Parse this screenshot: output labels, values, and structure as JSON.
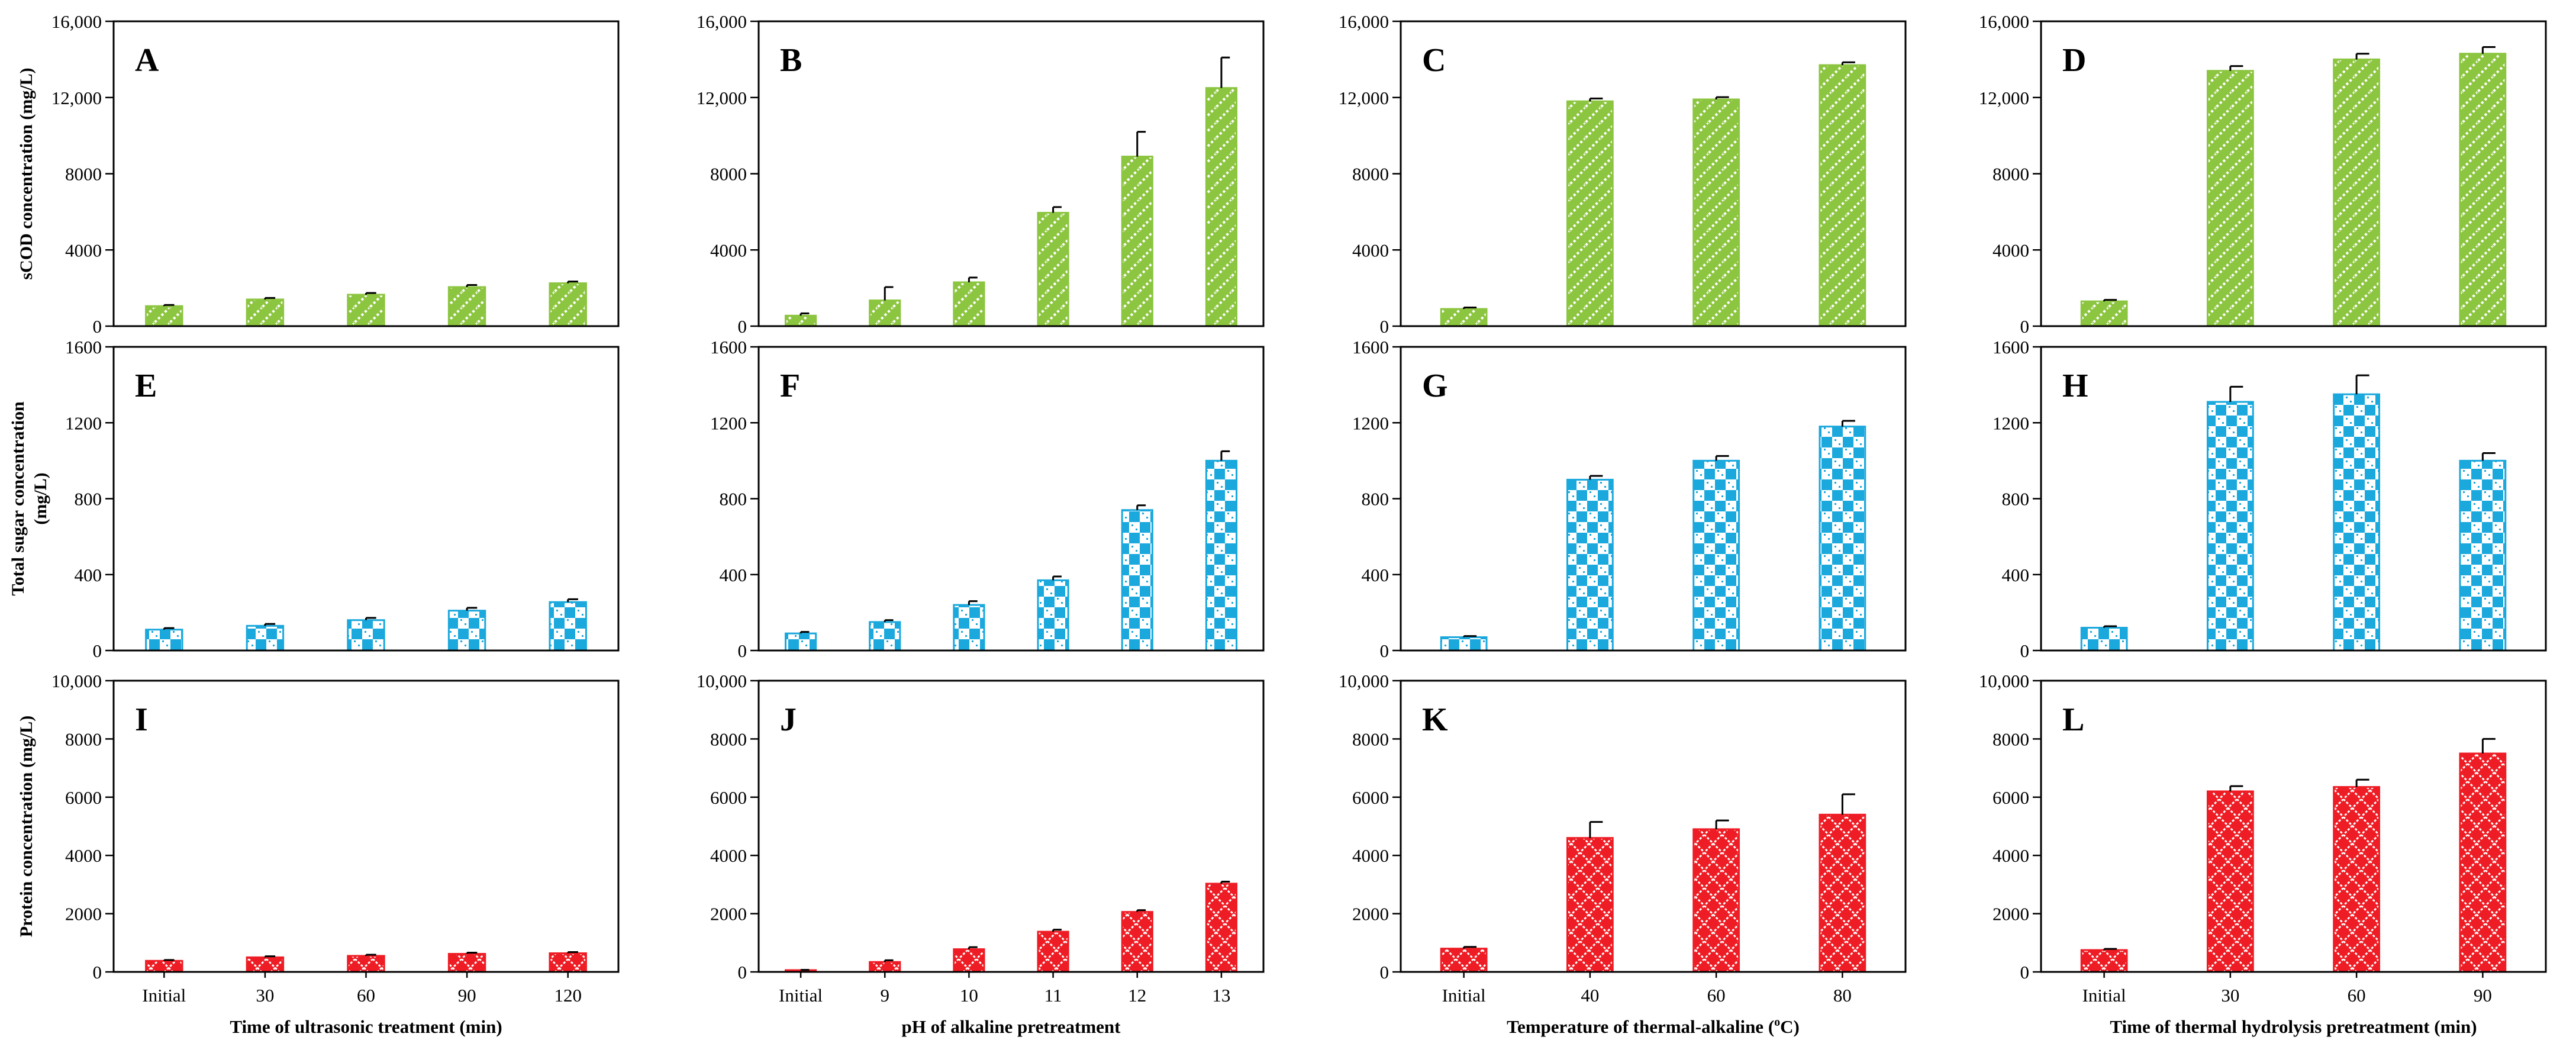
{
  "palette": {
    "green": "#8cc540",
    "blue": "#1aa8dd",
    "red": "#ee1c24"
  },
  "chart_data": [
    {
      "panel": "A",
      "type": "bar",
      "row": 0,
      "col": 0,
      "fill": "green",
      "pattern": "diag",
      "categories": [
        "Initial",
        "30",
        "60",
        "90",
        "120"
      ],
      "values": [
        1050,
        1400,
        1650,
        2050,
        2250
      ],
      "errors": [
        60,
        80,
        90,
        110,
        90
      ],
      "ylim": [
        0,
        16000
      ],
      "yticks": [
        "0",
        "4000",
        "8000",
        "12,000",
        "16,000"
      ],
      "ylabel": "sCOD concentration (mg/L)",
      "xlabel": ""
    },
    {
      "panel": "B",
      "type": "bar",
      "row": 0,
      "col": 1,
      "fill": "green",
      "pattern": "diag",
      "categories": [
        "Initial",
        "9",
        "10",
        "11",
        "12",
        "13"
      ],
      "values": [
        550,
        1350,
        2300,
        5950,
        8900,
        12500
      ],
      "errors": [
        120,
        700,
        250,
        300,
        1300,
        1600
      ],
      "ylim": [
        0,
        16000
      ],
      "yticks": [
        "0",
        "4000",
        "8000",
        "12,000",
        "16,000"
      ],
      "ylabel": "",
      "xlabel": ""
    },
    {
      "panel": "C",
      "type": "bar",
      "row": 0,
      "col": 2,
      "fill": "green",
      "pattern": "diag",
      "categories": [
        "Initial",
        "40",
        "60",
        "80"
      ],
      "values": [
        900,
        11800,
        11900,
        13700
      ],
      "errors": [
        80,
        150,
        120,
        150
      ],
      "ylim": [
        0,
        16000
      ],
      "yticks": [
        "0",
        "4000",
        "8000",
        "12,000",
        "16,000"
      ],
      "ylabel": "",
      "xlabel": ""
    },
    {
      "panel": "D",
      "type": "bar",
      "row": 0,
      "col": 3,
      "fill": "green",
      "pattern": "diag",
      "categories": [
        "Initial",
        "30",
        "60",
        "90"
      ],
      "values": [
        1300,
        13400,
        14000,
        14300
      ],
      "errors": [
        80,
        250,
        300,
        350
      ],
      "ylim": [
        0,
        16000
      ],
      "yticks": [
        "0",
        "4000",
        "8000",
        "12,000",
        "16,000"
      ],
      "ylabel": "",
      "xlabel": ""
    },
    {
      "panel": "E",
      "type": "bar",
      "row": 1,
      "col": 0,
      "fill": "blue",
      "pattern": "check",
      "categories": [
        "Initial",
        "30",
        "60",
        "90",
        "120"
      ],
      "values": [
        110,
        130,
        160,
        210,
        255
      ],
      "errors": [
        8,
        10,
        12,
        15,
        15
      ],
      "ylim": [
        0,
        1600
      ],
      "yticks": [
        "0",
        "400",
        "800",
        "1200",
        "1600"
      ],
      "ylabel": "Total sugar concentration (mg/L)",
      "xlabel": ""
    },
    {
      "panel": "F",
      "type": "bar",
      "row": 1,
      "col": 1,
      "fill": "blue",
      "pattern": "check",
      "categories": [
        "Initial",
        "9",
        "10",
        "11",
        "12",
        "13"
      ],
      "values": [
        90,
        150,
        240,
        370,
        740,
        1000
      ],
      "errors": [
        8,
        10,
        20,
        20,
        25,
        50
      ],
      "ylim": [
        0,
        1600
      ],
      "yticks": [
        "0",
        "400",
        "800",
        "1200",
        "1600"
      ],
      "ylabel": "",
      "xlabel": ""
    },
    {
      "panel": "G",
      "type": "bar",
      "row": 1,
      "col": 2,
      "fill": "blue",
      "pattern": "check",
      "categories": [
        "Initial",
        "40",
        "60",
        "80"
      ],
      "values": [
        70,
        900,
        1000,
        1180
      ],
      "errors": [
        6,
        20,
        25,
        30
      ],
      "ylim": [
        0,
        1600
      ],
      "yticks": [
        "0",
        "400",
        "800",
        "1200",
        "1600"
      ],
      "ylabel": "",
      "xlabel": ""
    },
    {
      "panel": "H",
      "type": "bar",
      "row": 1,
      "col": 3,
      "fill": "blue",
      "pattern": "check",
      "categories": [
        "Initial",
        "30",
        "60",
        "90"
      ],
      "values": [
        120,
        1310,
        1350,
        1000
      ],
      "errors": [
        8,
        80,
        100,
        40
      ],
      "ylim": [
        0,
        1600
      ],
      "yticks": [
        "0",
        "400",
        "800",
        "1200",
        "1600"
      ],
      "ylabel": "",
      "xlabel": ""
    },
    {
      "panel": "I",
      "type": "bar",
      "row": 2,
      "col": 0,
      "fill": "red",
      "pattern": "lattice",
      "categories": [
        "Initial",
        "30",
        "60",
        "90",
        "120"
      ],
      "values": [
        380,
        500,
        550,
        620,
        640
      ],
      "errors": [
        30,
        35,
        40,
        40,
        40
      ],
      "ylim": [
        0,
        10000
      ],
      "yticks": [
        "0",
        "2000",
        "4000",
        "6000",
        "8000",
        "10,000"
      ],
      "ylabel": "Protein concentration (mg/L)",
      "xlabel": "Time of ultrasonic treatment (min)"
    },
    {
      "panel": "J",
      "type": "bar",
      "row": 2,
      "col": 1,
      "fill": "red",
      "pattern": "lattice",
      "categories": [
        "Initial",
        "9",
        "10",
        "11",
        "12",
        "13"
      ],
      "values": [
        60,
        340,
        780,
        1380,
        2060,
        3030
      ],
      "errors": [
        10,
        60,
        70,
        70,
        60,
        70
      ],
      "ylim": [
        0,
        10000
      ],
      "yticks": [
        "0",
        "2000",
        "4000",
        "6000",
        "8000",
        "10,000"
      ],
      "ylabel": "",
      "xlabel": "pH of alkaline pretreatment"
    },
    {
      "panel": "K",
      "type": "bar",
      "row": 2,
      "col": 2,
      "fill": "red",
      "pattern": "lattice",
      "categories": [
        "Initial",
        "40",
        "60",
        "80"
      ],
      "values": [
        800,
        4600,
        4900,
        5400
      ],
      "errors": [
        60,
        550,
        300,
        700
      ],
      "ylim": [
        0,
        10000
      ],
      "yticks": [
        "0",
        "2000",
        "4000",
        "6000",
        "8000",
        "10,000"
      ],
      "ylabel": "",
      "xlabel": "Temperature of  thermal-alkaline (oC)"
    },
    {
      "panel": "L",
      "type": "bar",
      "row": 2,
      "col": 3,
      "fill": "red",
      "pattern": "lattice",
      "categories": [
        "Initial",
        "30",
        "60",
        "90"
      ],
      "values": [
        750,
        6200,
        6350,
        7500
      ],
      "errors": [
        40,
        180,
        250,
        500
      ],
      "ylim": [
        0,
        10000
      ],
      "yticks": [
        "0",
        "2000",
        "4000",
        "6000",
        "8000",
        "10,000"
      ],
      "ylabel": "",
      "xlabel": "Time of thermal hydrolysis pretreatment (min)"
    }
  ]
}
